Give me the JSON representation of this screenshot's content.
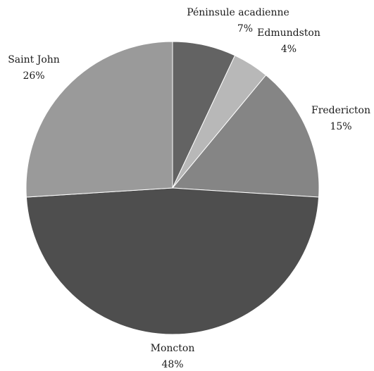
{
  "chart_data": {
    "type": "pie",
    "title": "",
    "slices": [
      {
        "label": "Péninsule acadienne",
        "value": 7,
        "value_label": "7%",
        "color": "#636363"
      },
      {
        "label": "Edmundston",
        "value": 4,
        "value_label": "4%",
        "color": "#b8b8b8"
      },
      {
        "label": "Fredericton",
        "value": 15,
        "value_label": "15%",
        "color": "#858585"
      },
      {
        "label": "Moncton",
        "value": 48,
        "value_label": "48%",
        "color": "#4e4e4e"
      },
      {
        "label": "Saint John",
        "value": 26,
        "value_label": "26%",
        "color": "#9a9a9a"
      }
    ],
    "start": "12 o'clock",
    "direction": "clockwise",
    "legend": "none"
  }
}
